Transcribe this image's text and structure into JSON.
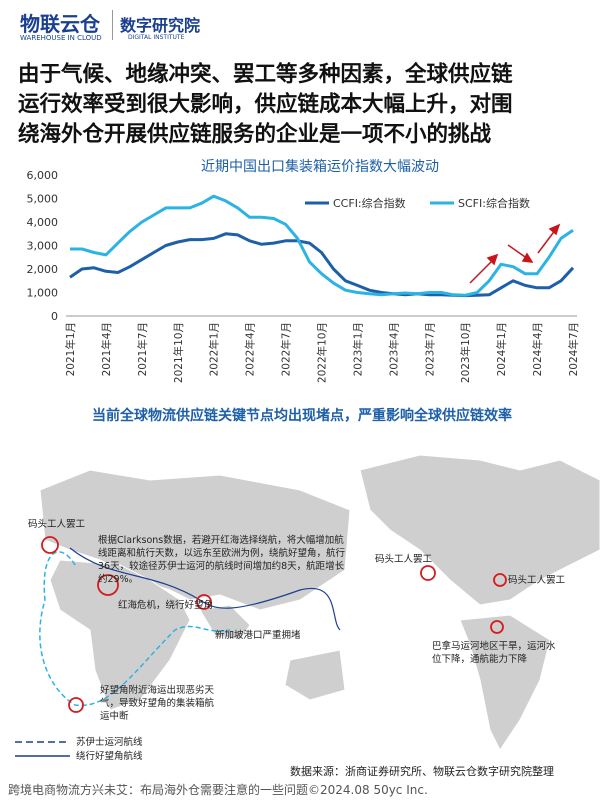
{
  "header": {
    "brand": "物联云仓",
    "brand_sub": "WAREHOUSE IN CLOUD",
    "institute": "数字研究院",
    "institute_sub": "DIGITAL INSTITUTE"
  },
  "headline": [
    "由于气候、地缘冲突、罢工等多种因素，全球供应链",
    "运行效率受到很大影响，供应链成本大幅上升，对围",
    "绕海外仓开展供应链服务的企业是一项不小的挑战"
  ],
  "chart_data": {
    "type": "line",
    "title": "近期中国出口集装箱运价指数大幅波动",
    "categories": [
      "2021年1月",
      null,
      null,
      "2021年4月",
      null,
      null,
      "2021年7月",
      null,
      null,
      "2021年10月",
      null,
      null,
      "2022年1月",
      null,
      null,
      "2022年4月",
      null,
      null,
      "2022年7月",
      null,
      null,
      "2022年10月",
      null,
      null,
      "2023年1月",
      null,
      null,
      "2023年4月",
      null,
      null,
      "2023年7月",
      null,
      null,
      "2023年10月",
      null,
      null,
      "2024年1月",
      null,
      null,
      "2024年4月",
      null,
      null,
      "2024年7月"
    ],
    "series": [
      {
        "name": "CCFI:综合指数",
        "color": "#1d5fa8",
        "values": [
          1650,
          2000,
          2050,
          1900,
          1850,
          2100,
          2400,
          2700,
          3000,
          3150,
          3250,
          3250,
          3300,
          3500,
          3450,
          3200,
          3050,
          3100,
          3200,
          3200,
          3100,
          2700,
          2000,
          1500,
          1300,
          1100,
          1000,
          950,
          900,
          950,
          900,
          900,
          880,
          870,
          880,
          900,
          1200,
          1500,
          1300,
          1200,
          1200,
          1500,
          2050
        ]
      },
      {
        "name": "SCFI:综合指数",
        "color": "#2bb3e3",
        "values": [
          2850,
          2850,
          2700,
          2600,
          3100,
          3600,
          4000,
          4300,
          4600,
          4600,
          4600,
          4800,
          5100,
          4900,
          4600,
          4200,
          4200,
          4150,
          3900,
          3300,
          2300,
          1800,
          1400,
          1100,
          1000,
          950,
          900,
          950,
          980,
          950,
          1000,
          1000,
          900,
          880,
          1000,
          1500,
          2200,
          2100,
          1800,
          1800,
          2500,
          3300,
          3650
        ]
      }
    ],
    "ylim": [
      0,
      6000
    ],
    "yticks": [
      0,
      {
        "value": 1000,
        "label": "1,000"
      },
      {
        "value": 2000,
        "label": "2,000"
      },
      {
        "value": 3000,
        "label": "3,000"
      },
      {
        "value": 4000,
        "label": "4,000"
      },
      {
        "value": 5000,
        "label": "5,000"
      },
      {
        "value": 6000,
        "label": "6,000"
      }
    ],
    "grid": false
  },
  "map": {
    "title": "当前全球物流供应链关键节点均出现堵点，严重影响全球供应链效率",
    "annotations": [
      "码头工人罢工",
      "根据Clarksons数据，若避开红海选择绕航，将大幅增加航线距离和航行天数，以远东至欧洲为例，绕航好望角，航行36天，较途径苏伊士运河的航线时间增加约8天，航距增长约29%。",
      "红海危机，绕行好望角",
      "新加坡港口严重拥堵",
      "好望角附近海运出现恶劣天气，导致好望角的集装箱航运中断",
      "码头工人罢工",
      "码头工人罢工",
      "巴拿马运河地区干旱，运河水位下降，通航能力下降"
    ],
    "legend": [
      "苏伊士运河航线",
      "绕行好望角航线"
    ]
  },
  "source": "数据来源：浙商证券研究所、物联云仓数字研究院整理",
  "footer": "跨境电商物流方兴未艾：布局海外仓需要注意的一些问题©2024.08 50yc Inc."
}
